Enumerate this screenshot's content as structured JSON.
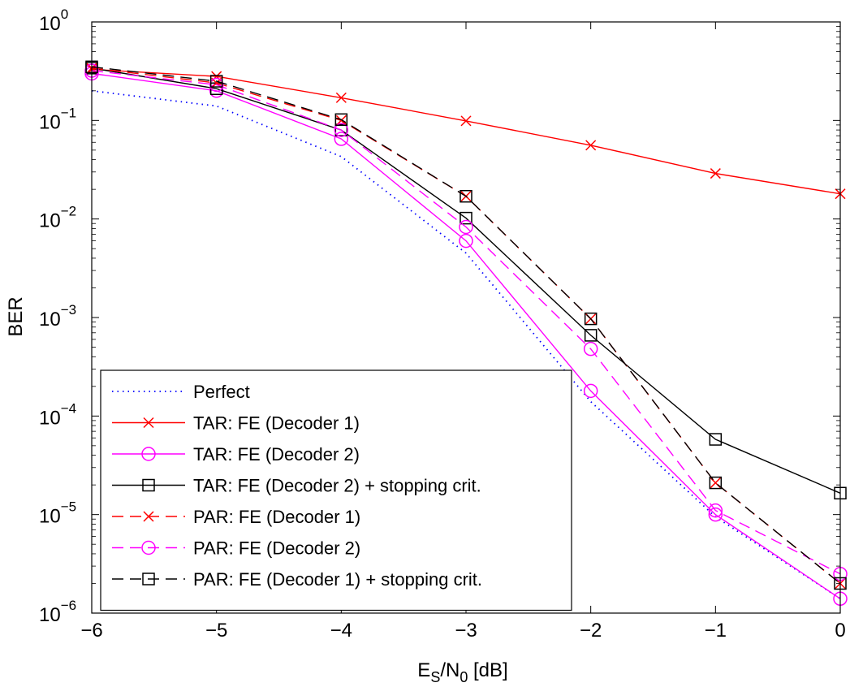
{
  "chart_data": {
    "type": "line",
    "title": "",
    "xlabel": {
      "main": "E",
      "sub1": "S",
      "mid": "/N",
      "sub2": "0",
      "tail": " [dB]"
    },
    "ylabel": "BER",
    "xlim": [
      -6,
      0
    ],
    "ylim": [
      1e-06,
      1
    ],
    "yscale": "log",
    "grid": false,
    "legend_location": "bottom-left",
    "x_ticks": [
      -6,
      -5,
      -4,
      -3,
      -2,
      -1,
      0
    ],
    "x_tick_labels": [
      "−6",
      "−5",
      "−4",
      "−3",
      "−2",
      "−1",
      "0"
    ],
    "y_ticks": [
      {
        "value": 1,
        "base": "10",
        "exp": "0"
      },
      {
        "value": 0.1,
        "base": "10",
        "exp": "-1"
      },
      {
        "value": 0.01,
        "base": "10",
        "exp": "-2"
      },
      {
        "value": 0.001,
        "base": "10",
        "exp": "-3"
      },
      {
        "value": 0.0001,
        "base": "10",
        "exp": "-4"
      },
      {
        "value": 1e-05,
        "base": "10",
        "exp": "-5"
      },
      {
        "value": 1e-06,
        "base": "10",
        "exp": "-6"
      }
    ],
    "series": [
      {
        "name": "Perfect",
        "color": "#0000ff",
        "dash": "dotted",
        "marker": "none",
        "x": [
          -6,
          -5,
          -4,
          -3,
          -2,
          -1,
          0
        ],
        "y": [
          0.2,
          0.14,
          0.043,
          0.0045,
          0.00014,
          9.5e-06,
          1.4e-06
        ]
      },
      {
        "name": "TAR: FE (Decoder 1)",
        "color": "#ff0000",
        "dash": "solid",
        "marker": "x",
        "x": [
          -6,
          -5,
          -4,
          -3,
          -2,
          -1,
          0
        ],
        "y": [
          0.33,
          0.28,
          0.17,
          0.099,
          0.056,
          0.029,
          0.018
        ]
      },
      {
        "name": "TAR: FE (Decoder 2)",
        "color": "#ff00ff",
        "dash": "solid",
        "marker": "circle",
        "x": [
          -6,
          -5,
          -4,
          -3,
          -2,
          -1,
          0
        ],
        "y": [
          0.3,
          0.2,
          0.065,
          0.006,
          0.00018,
          1e-05,
          1.4e-06
        ]
      },
      {
        "name": "TAR: FE (Decoder 2) + stopping crit.",
        "color": "#000000",
        "dash": "solid",
        "marker": "square",
        "x": [
          -6,
          -5,
          -4,
          -3,
          -2,
          -1,
          0
        ],
        "y": [
          0.34,
          0.21,
          0.08,
          0.0102,
          0.00066,
          5.8e-05,
          1.65e-05
        ]
      },
      {
        "name": "PAR: FE (Decoder 1)",
        "color": "#ff0000",
        "dash": "dashed",
        "marker": "x",
        "x": [
          -6,
          -5,
          -4,
          -3,
          -2,
          -1,
          0
        ],
        "y": [
          0.34,
          0.24,
          0.1,
          0.017,
          0.00097,
          2.1e-05,
          2e-06
        ]
      },
      {
        "name": "PAR: FE (Decoder 2)",
        "color": "#ff00ff",
        "dash": "dashed",
        "marker": "circle",
        "x": [
          -6,
          -5,
          -4,
          -3,
          -2,
          -1,
          0
        ],
        "y": [
          0.32,
          0.23,
          0.08,
          0.0083,
          0.00048,
          1.1e-05,
          2.5e-06
        ]
      },
      {
        "name": "PAR: FE (Decoder 1) + stopping crit.",
        "color": "#000000",
        "dash": "dashed",
        "marker": "square",
        "x": [
          -6,
          -5,
          -4,
          -3,
          -2,
          -1,
          0
        ],
        "y": [
          0.35,
          0.25,
          0.102,
          0.017,
          0.00097,
          2.1e-05,
          2e-06
        ]
      }
    ]
  }
}
